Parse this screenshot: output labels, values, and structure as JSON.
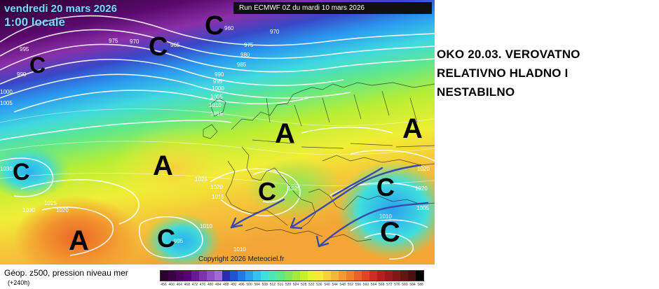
{
  "map": {
    "date": "vendredi 20 mars 2026",
    "time": "1:00 locale",
    "run": "Run ECMWF 0Z du mardi 10 mars 2026",
    "copyright": "Copyright 2026 Meteociel.fr",
    "pressure_labels": [
      "995",
      "990",
      "975",
      "970",
      "960",
      "965",
      "970",
      "975",
      "980",
      "985",
      "990",
      "995",
      "1000",
      "1005",
      "1010",
      "1015",
      "1000",
      "1005",
      "1030",
      "1025",
      "1020",
      "1030",
      "1025",
      "1020",
      "1015",
      "1025",
      "1020",
      "1010",
      "1010",
      "1020",
      "1005",
      "1010",
      "995"
    ],
    "pressure_centers": [
      "C",
      "C",
      "C",
      "A",
      "A",
      "C",
      "C",
      "C",
      "A",
      "A",
      "C"
    ]
  },
  "forecast_note": {
    "line1": "OKO 20.03. VEROVATNO",
    "line2": "RELATIVNO HLADNO I",
    "line3": "NESTABILNO"
  },
  "footer": {
    "title": "Géop. z500, pression niveau mer",
    "lead": "(+240h)"
  },
  "legend": {
    "colors": [
      "#2b002f",
      "#3a0045",
      "#4b0061",
      "#5a007a",
      "#6c1a94",
      "#7e33ad",
      "#8f4fc4",
      "#a06bd8",
      "#2b2bb0",
      "#1f52cf",
      "#1f7ae6",
      "#2aa0ef",
      "#35c2ef",
      "#40dede",
      "#4de6b5",
      "#5fe78a",
      "#7fe85c",
      "#a3ea3c",
      "#c6ef30",
      "#e6f230",
      "#f7e83a",
      "#f8d03c",
      "#f6b53a",
      "#f49a33",
      "#f07f2d",
      "#ea6228",
      "#e04624",
      "#cc2e22",
      "#b51f20",
      "#9a1a1e",
      "#801818",
      "#661414",
      "#4d1010",
      "#000000"
    ],
    "ticks": [
      "456",
      "460",
      "464",
      "468",
      "472",
      "476",
      "480",
      "484",
      "488",
      "492",
      "496",
      "500",
      "504",
      "508",
      "512",
      "516",
      "520",
      "524",
      "528",
      "532",
      "536",
      "540",
      "544",
      "548",
      "552",
      "556",
      "560",
      "564",
      "568",
      "572",
      "576",
      "580",
      "584",
      "588"
    ]
  }
}
